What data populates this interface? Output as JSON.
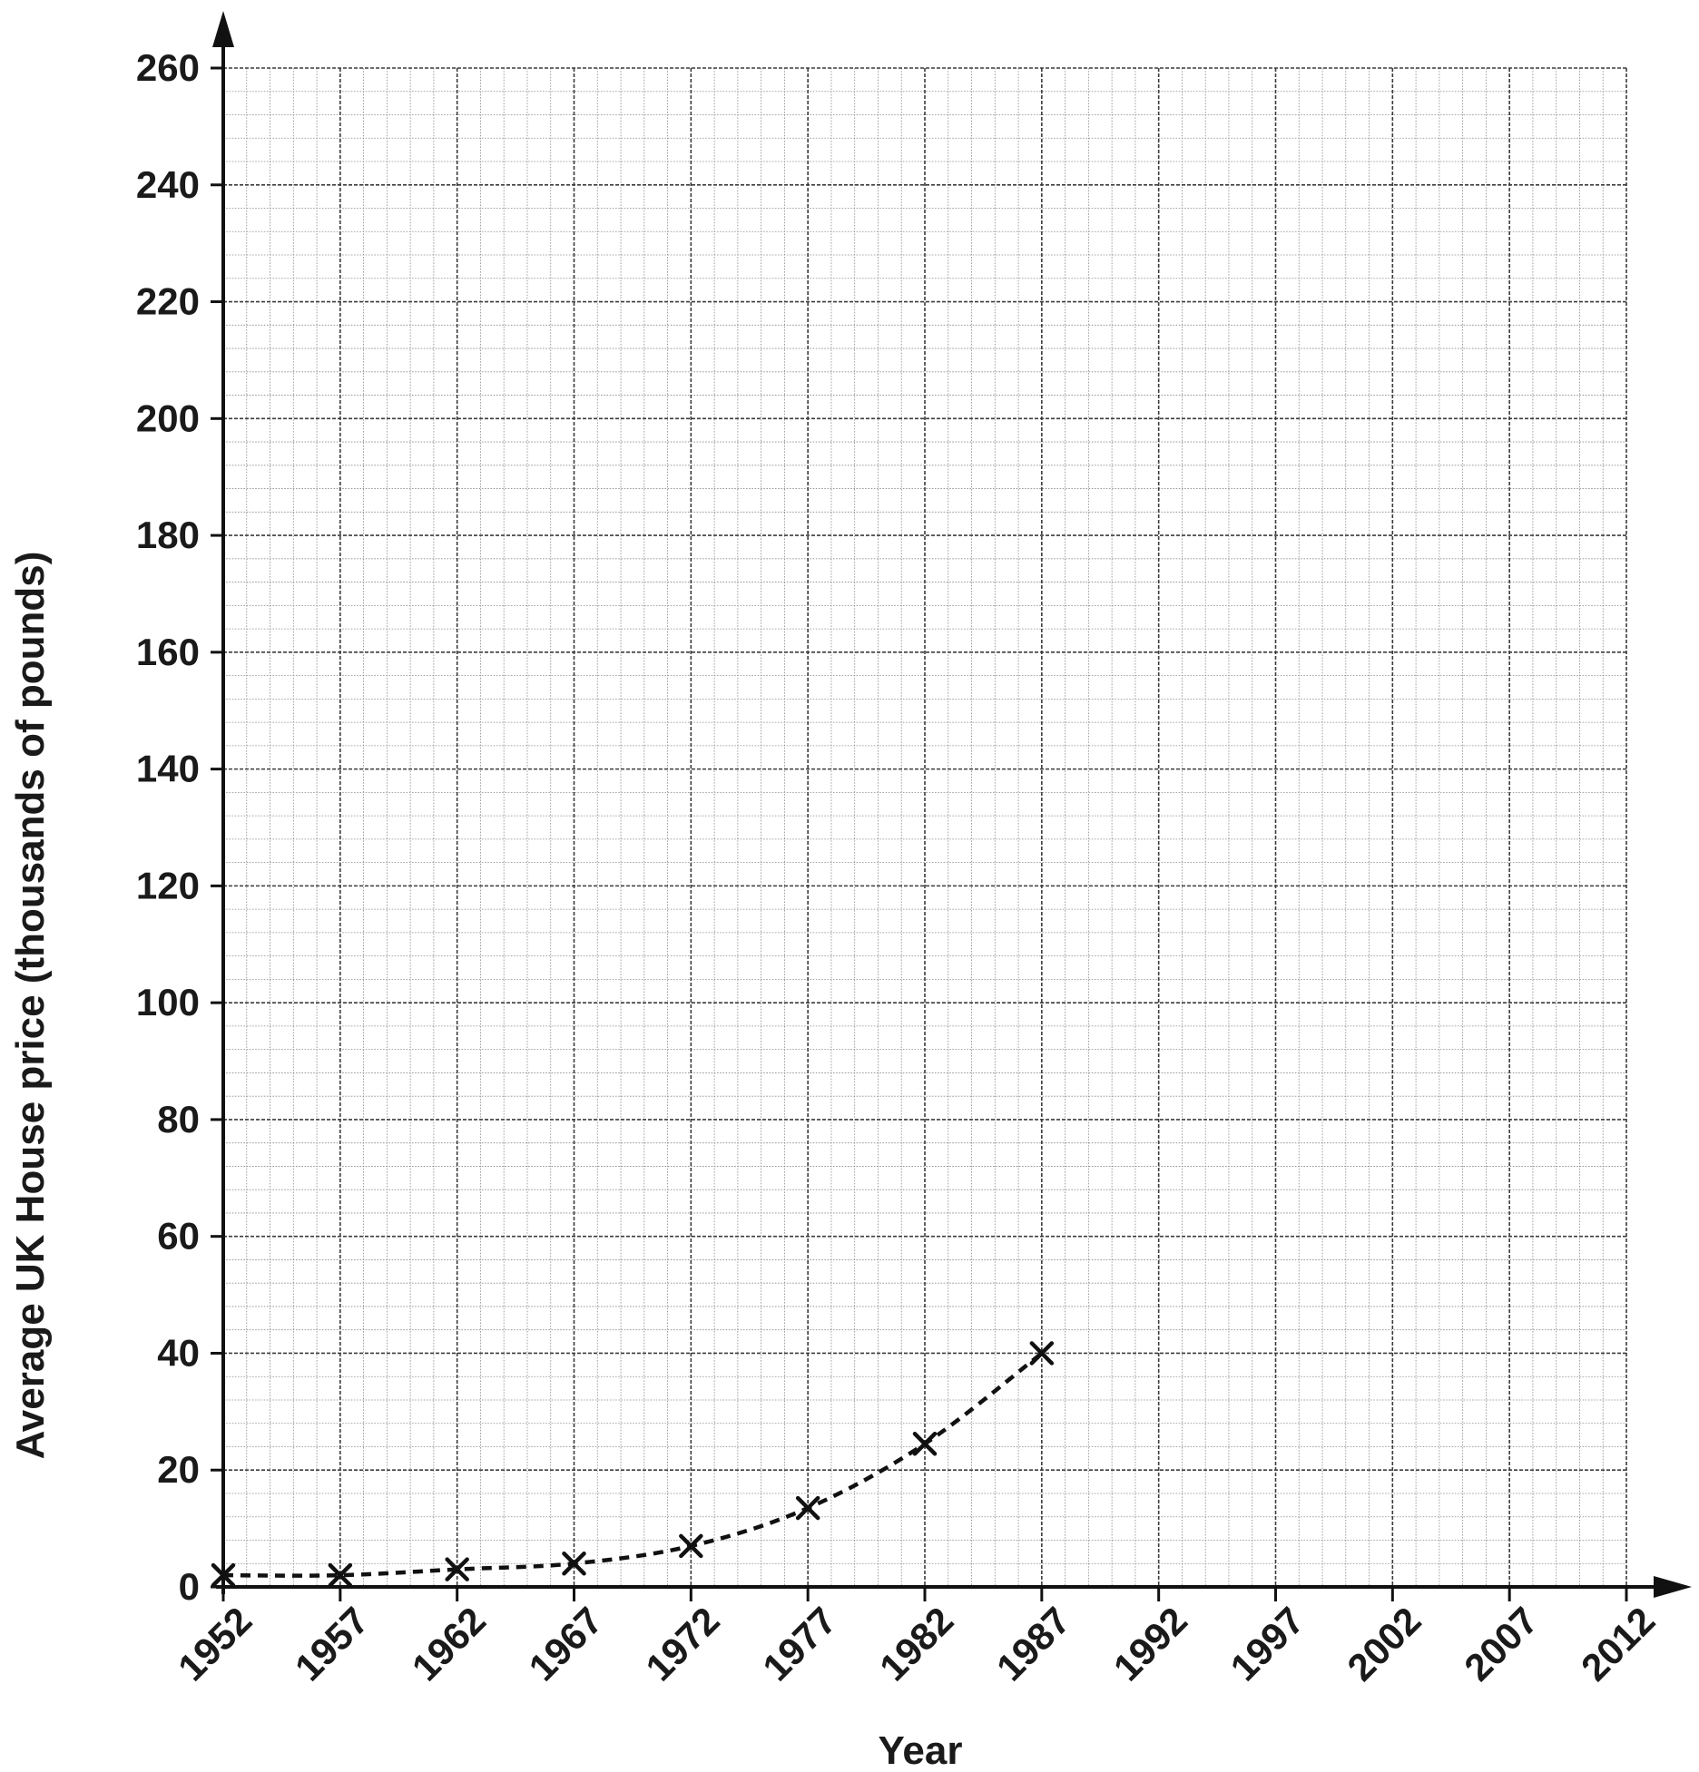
{
  "chart_data": {
    "type": "line",
    "title": "",
    "xlabel": "Year",
    "ylabel": "Average UK House price (thousands of pounds)",
    "x_ticks": [
      "1952",
      "1957",
      "1962",
      "1967",
      "1972",
      "1977",
      "1982",
      "1987",
      "1992",
      "1997",
      "2002",
      "2007",
      "2012"
    ],
    "y_ticks": [
      "0",
      "20",
      "40",
      "60",
      "80",
      "100",
      "120",
      "140",
      "160",
      "180",
      "200",
      "220",
      "240",
      "260"
    ],
    "xlim": [
      1952,
      2012
    ],
    "ylim": [
      0,
      260
    ],
    "grid": true,
    "series": [
      {
        "line_style": "dashed",
        "marker": "x",
        "color": "#111111",
        "x": [
          1952,
          1957,
          1962,
          1967,
          1972,
          1977,
          1982,
          1987
        ],
        "y": [
          2,
          2,
          3,
          4,
          7,
          13.5,
          24.5,
          40
        ]
      }
    ]
  }
}
